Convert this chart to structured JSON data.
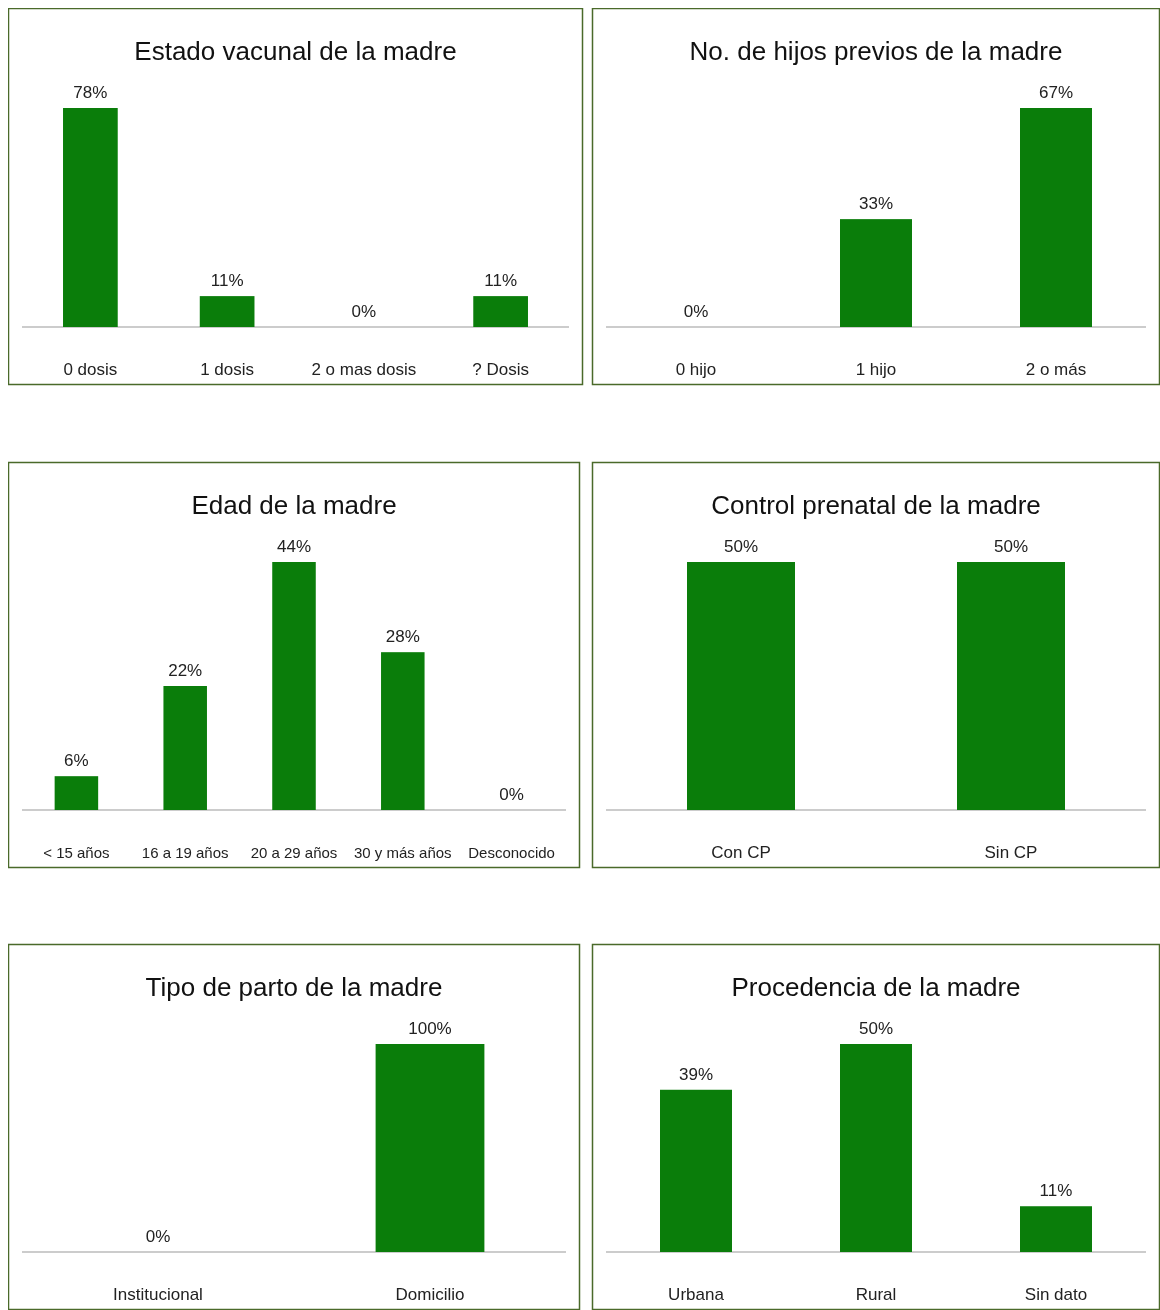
{
  "chart_data": [
    {
      "type": "bar",
      "title": "Estado vacunal de la madre",
      "categories": [
        "0 dosis",
        "1 dosis",
        "2 o mas dosis",
        "? Dosis"
      ],
      "values": [
        78,
        11,
        0,
        11
      ],
      "value_labels": [
        "78%",
        "11%",
        "0%",
        "11%"
      ],
      "color": "#0a7d0a"
    },
    {
      "type": "bar",
      "title": "No. de hijos previos de la madre",
      "categories": [
        "0 hijo",
        "1 hijo",
        "2 o más"
      ],
      "values": [
        0,
        33,
        67
      ],
      "value_labels": [
        "0%",
        "33%",
        "67%"
      ],
      "color": "#0a7d0a"
    },
    {
      "type": "bar",
      "title": "Edad de la madre",
      "categories": [
        "< 15 años",
        "16 a 19 años",
        "20 a 29 años",
        "30 y más años",
        "Desconocido"
      ],
      "values": [
        6,
        22,
        44,
        28,
        0
      ],
      "value_labels": [
        "6%",
        "22%",
        "44%",
        "28%",
        "0%"
      ],
      "color": "#0a7d0a"
    },
    {
      "type": "bar",
      "title": "Control prenatal de la madre",
      "categories": [
        "Con CP",
        "Sin CP"
      ],
      "values": [
        50,
        50
      ],
      "value_labels": [
        "50%",
        "50%"
      ],
      "color": "#0a7d0a"
    },
    {
      "type": "bar",
      "title": "Tipo de parto de la madre",
      "categories": [
        "Institucional",
        "Domicilio"
      ],
      "values": [
        0,
        100
      ],
      "value_labels": [
        "0%",
        "100%"
      ],
      "color": "#0a7d0a"
    },
    {
      "type": "bar",
      "title": "Procedencia de la madre",
      "categories": [
        "Urbana",
        "Rural",
        "Sin dato"
      ],
      "values": [
        39,
        50,
        11
      ],
      "value_labels": [
        "39%",
        "50%",
        "11%"
      ],
      "color": "#0a7d0a"
    }
  ]
}
